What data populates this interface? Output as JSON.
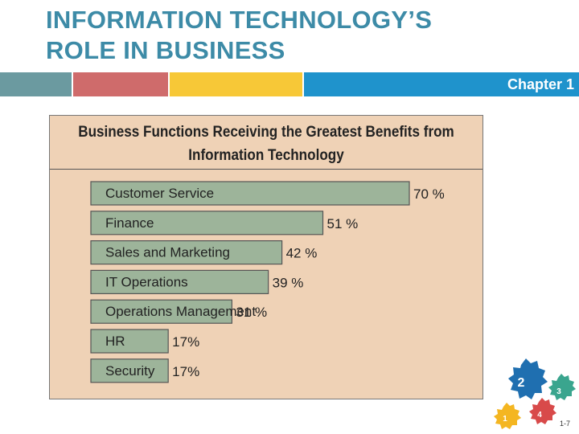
{
  "slide": {
    "title_line1": "INFORMATION TECHNOLOGY’S",
    "title_line2": "ROLE IN BUSINESS",
    "chapter": "Chapter 1",
    "page": "1-7",
    "gear_numbers": [
      "1",
      "2",
      "3",
      "4"
    ],
    "colors": {
      "title": "#3d8ba7",
      "band": [
        "#6b9aa0",
        "#cf6b6b",
        "#f7c837",
        "#1f93cc"
      ],
      "panel": "#efd2b6",
      "bar": "#9db49a"
    }
  },
  "chart_data": {
    "type": "bar",
    "orientation": "horizontal",
    "title_line1": "Business Functions Receiving the Greatest Benefits from",
    "title_line2": "Information Technology",
    "categories": [
      "Customer Service",
      "Finance",
      "Sales and Marketing",
      "IT Operations",
      "Operations Management",
      "HR",
      "Security"
    ],
    "values": [
      70,
      51,
      42,
      39,
      31,
      17,
      17
    ],
    "value_labels": [
      "70 %",
      "51 %",
      "42 %",
      "39 %",
      "31 %",
      "17%",
      "17%"
    ],
    "xlim": [
      0,
      100
    ],
    "grid": false,
    "legend": "none"
  }
}
